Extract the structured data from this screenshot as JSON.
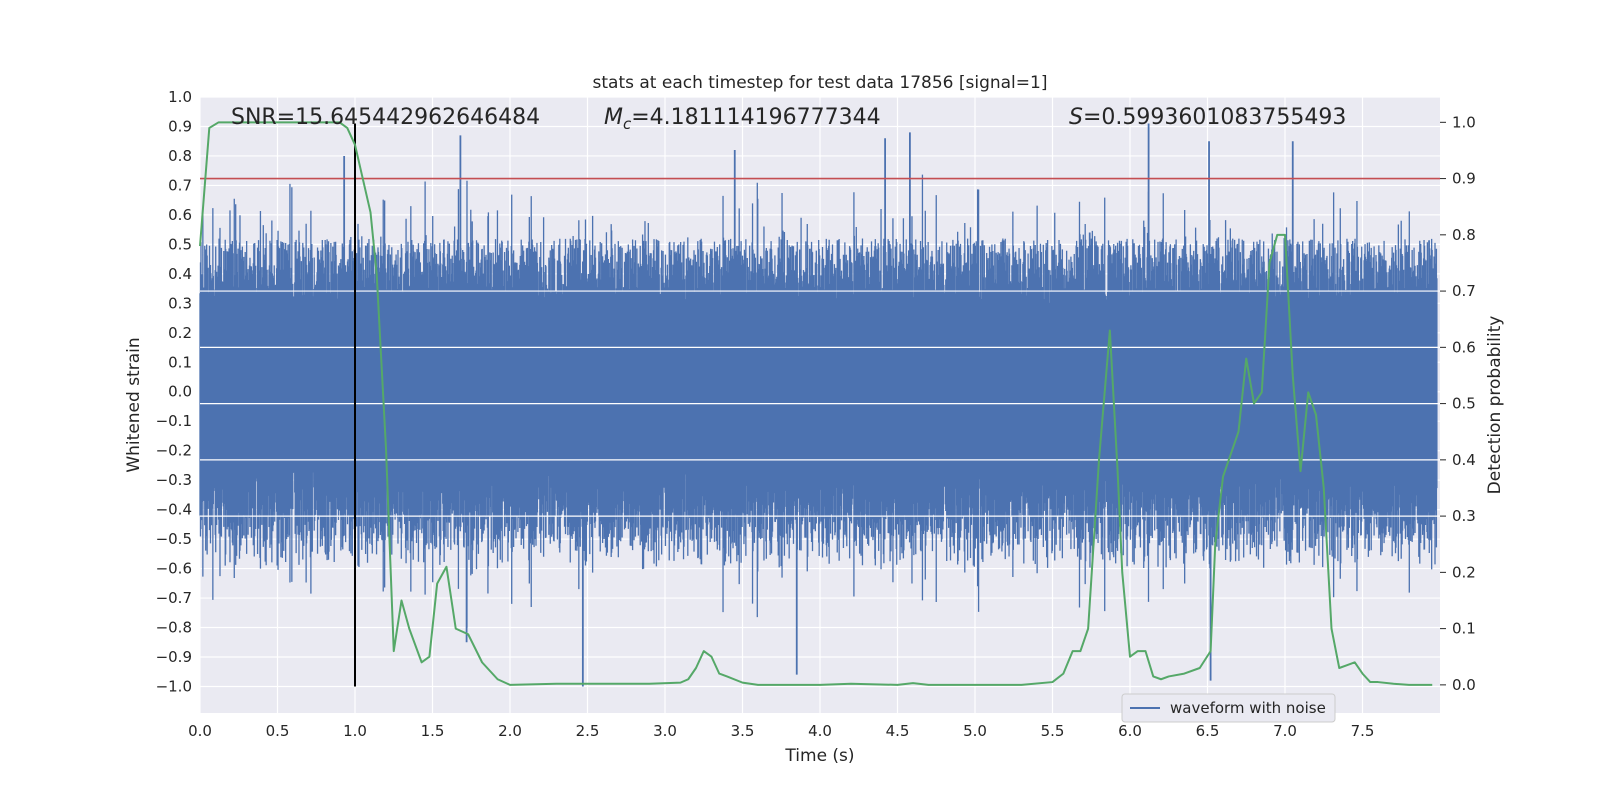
{
  "chart_data": {
    "type": "line",
    "title": "stats at each timestep for test data 17856 [signal=1]",
    "xlabel": "Time (s)",
    "ylabel_left": "Whitened strain",
    "ylabel_right": "Detection probability",
    "xlim": [
      0.0,
      8.0
    ],
    "ylim_left": [
      -1.09,
      1.0
    ],
    "ylim_right": [
      -0.05,
      1.045
    ],
    "x_ticks": [
      "0.0",
      "0.5",
      "1.0",
      "1.5",
      "2.0",
      "2.5",
      "3.0",
      "3.5",
      "4.0",
      "4.5",
      "5.0",
      "5.5",
      "6.0",
      "6.5",
      "7.0",
      "7.5"
    ],
    "y_left_ticks": [
      "1.0",
      "0.9",
      "0.8",
      "0.7",
      "0.6",
      "0.5",
      "0.4",
      "0.3",
      "0.2",
      "0.1",
      "0.0",
      "−0.1",
      "−0.2",
      "−0.3",
      "−0.4",
      "−0.5",
      "−0.6",
      "−0.7",
      "−0.8",
      "−0.9",
      "−1.0"
    ],
    "y_right_ticks": [
      "0.0",
      "0.1",
      "0.2",
      "0.3",
      "0.4",
      "0.5",
      "0.6",
      "0.7",
      "0.8",
      "0.9",
      "1.0"
    ],
    "grid": true,
    "annotations": {
      "snr": "SNR=15.645442962646484",
      "mc_symbol": "M",
      "mc_subscript": "c",
      "mc_value": "=4.181114196777344",
      "s_symbol": "S",
      "s_value": "=0.5993601083755493"
    },
    "threshold_line": {
      "axis": "right",
      "value": 0.9,
      "color": "#c44e52"
    },
    "vertical_marker": {
      "x": 1.0,
      "y_from": -1.0,
      "y_to": 0.91,
      "color": "#000000"
    },
    "legend": {
      "position": "lower-right",
      "entries": [
        "waveform with noise"
      ]
    },
    "series": [
      {
        "name": "waveform with noise",
        "axis": "left",
        "color": "#4c72b0",
        "style": "dense noisy waveform; typical envelope about ±0.5, peaks near ±0.9 to ±1.0",
        "peaks": [
          {
            "x": 0.93,
            "y": 0.8
          },
          {
            "x": 1.68,
            "y": 0.87
          },
          {
            "x": 1.72,
            "y": -0.85
          },
          {
            "x": 2.47,
            "y": -1.0
          },
          {
            "x": 3.45,
            "y": 0.82
          },
          {
            "x": 3.85,
            "y": -0.96
          },
          {
            "x": 4.42,
            "y": 0.86
          },
          {
            "x": 4.58,
            "y": 0.88
          },
          {
            "x": 6.12,
            "y": 0.91
          },
          {
            "x": 6.51,
            "y": 0.85
          },
          {
            "x": 6.52,
            "y": -0.98
          },
          {
            "x": 7.05,
            "y": 0.85
          }
        ]
      },
      {
        "name": "detection probability",
        "axis": "right",
        "color": "#55a868",
        "x": [
          0.0,
          0.06,
          0.12,
          0.2,
          0.3,
          0.5,
          0.7,
          0.9,
          0.95,
          1.0,
          1.05,
          1.1,
          1.14,
          1.2,
          1.25,
          1.3,
          1.35,
          1.43,
          1.48,
          1.53,
          1.59,
          1.65,
          1.73,
          1.82,
          1.92,
          2.0,
          2.3,
          2.5,
          2.7,
          2.9,
          3.1,
          3.15,
          3.2,
          3.25,
          3.3,
          3.35,
          3.4,
          3.5,
          3.6,
          4.0,
          4.2,
          4.5,
          4.6,
          4.7,
          5.0,
          5.3,
          5.5,
          5.57,
          5.63,
          5.68,
          5.73,
          5.8,
          5.87,
          5.92,
          5.95,
          6.0,
          6.05,
          6.1,
          6.15,
          6.2,
          6.25,
          6.35,
          6.45,
          6.52,
          6.55,
          6.6,
          6.7,
          6.75,
          6.8,
          6.85,
          6.9,
          6.95,
          7.0,
          7.05,
          7.1,
          7.15,
          7.2,
          7.25,
          7.3,
          7.35,
          7.4,
          7.45,
          7.5,
          7.55,
          7.6,
          7.7,
          7.8,
          7.95
        ],
        "y": [
          0.78,
          0.99,
          1.0,
          1.0,
          1.0,
          1.0,
          1.0,
          1.0,
          0.99,
          0.96,
          0.9,
          0.84,
          0.73,
          0.42,
          0.06,
          0.15,
          0.1,
          0.04,
          0.05,
          0.18,
          0.21,
          0.1,
          0.09,
          0.04,
          0.01,
          0.0,
          0.002,
          0.002,
          0.002,
          0.002,
          0.004,
          0.01,
          0.03,
          0.06,
          0.05,
          0.02,
          0.015,
          0.004,
          0.0,
          0.0,
          0.002,
          0.0,
          0.003,
          0.0,
          0.0,
          0.0,
          0.005,
          0.02,
          0.06,
          0.06,
          0.1,
          0.4,
          0.63,
          0.38,
          0.2,
          0.05,
          0.06,
          0.06,
          0.015,
          0.01,
          0.015,
          0.02,
          0.03,
          0.06,
          0.25,
          0.37,
          0.45,
          0.58,
          0.5,
          0.52,
          0.75,
          0.8,
          0.8,
          0.55,
          0.38,
          0.52,
          0.48,
          0.35,
          0.1,
          0.03,
          0.035,
          0.04,
          0.02,
          0.005,
          0.005,
          0.002,
          0.0,
          0.0
        ]
      }
    ]
  }
}
